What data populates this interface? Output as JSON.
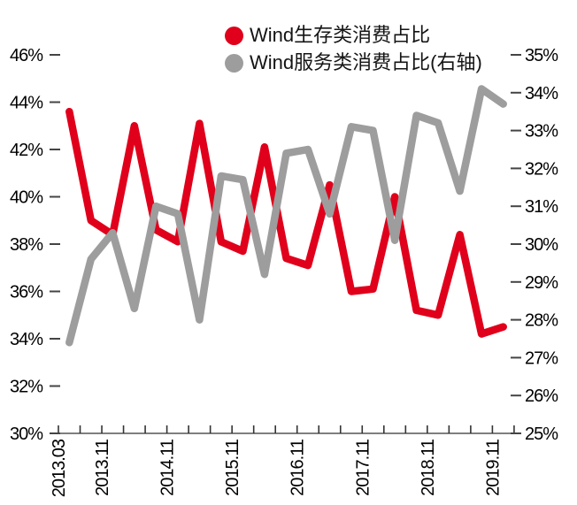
{
  "legend": [
    {
      "label": "Wind生存类消费占比",
      "color": "#e0001b"
    },
    {
      "label": "Wind服务类消费占比(右轴)",
      "color": "#9d9d9d"
    }
  ],
  "chart_data": {
    "type": "line",
    "title": "",
    "x": [
      "2013.03",
      "2013.07",
      "2013.11",
      "2014.03",
      "2014.07",
      "2014.11",
      "2015.03",
      "2015.07",
      "2015.11",
      "2016.03",
      "2016.07",
      "2016.11",
      "2017.03",
      "2017.07",
      "2017.11",
      "2018.03",
      "2018.07",
      "2018.11",
      "2019.03",
      "2019.07",
      "2019.11"
    ],
    "x_tick_labels": [
      "2013.03",
      "2013.11",
      "2014.11",
      "2015.11",
      "2016.11",
      "2017.11",
      "2018.11",
      "2019.11"
    ],
    "x_tick_label_indices": [
      0,
      2,
      5,
      8,
      11,
      14,
      17,
      20
    ],
    "series": [
      {
        "name": "Wind生存类消费占比",
        "axis": "left",
        "color": "#e0001b",
        "values": [
          43.6,
          39.0,
          38.4,
          43.0,
          38.6,
          38.1,
          43.1,
          38.1,
          37.7,
          42.1,
          37.4,
          37.1,
          40.5,
          36.0,
          36.1,
          40.0,
          35.2,
          35.0,
          38.4,
          34.2,
          34.5
        ]
      },
      {
        "name": "Wind服务类消费占比(右轴)",
        "axis": "right",
        "color": "#9d9d9d",
        "values": [
          27.4,
          29.6,
          30.3,
          28.3,
          31.0,
          30.8,
          28.0,
          31.8,
          31.7,
          29.2,
          32.4,
          32.5,
          30.8,
          33.1,
          33.0,
          30.1,
          33.4,
          33.2,
          31.4,
          34.1,
          33.7
        ]
      }
    ],
    "left_axis": {
      "min": 30,
      "max": 46,
      "step": 2,
      "tick_labels": [
        "46%",
        "44%",
        "42%",
        "40%",
        "38%",
        "36%",
        "34%",
        "32%",
        "30%"
      ]
    },
    "right_axis": {
      "min": 25,
      "max": 35,
      "step": 1,
      "tick_labels": [
        "35%",
        "34%",
        "33%",
        "32%",
        "31%",
        "30%",
        "29%",
        "28%",
        "27%",
        "26%",
        "25%"
      ]
    },
    "grid": false,
    "legend_position": "top-center"
  }
}
